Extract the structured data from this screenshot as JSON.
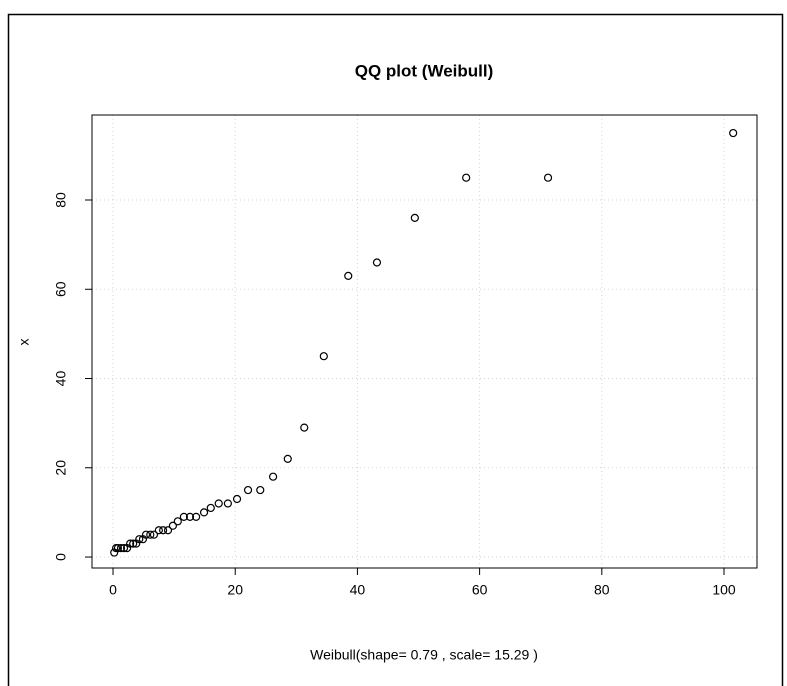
{
  "chart_data": {
    "type": "scatter",
    "title": "QQ plot (Weibull)",
    "xlabel": "Weibull(shape= 0.79 , scale= 15.29 )",
    "ylabel": "x",
    "x": [
      0.2,
      0.5,
      0.8,
      1.3,
      1.8,
      2.3,
      2.8,
      3.3,
      3.8,
      4.3,
      4.9,
      5.4,
      6.1,
      6.7,
      7.5,
      8.2,
      9.0,
      9.8,
      10.6,
      11.6,
      12.6,
      13.6,
      14.9,
      16.0,
      17.3,
      18.8,
      20.3,
      22.1,
      24.1,
      26.2,
      28.6,
      31.3,
      34.5,
      38.5,
      43.2,
      49.4,
      57.8,
      71.2,
      101.5
    ],
    "y": [
      1,
      2,
      2,
      2,
      2,
      2,
      3,
      3,
      3,
      4,
      4,
      5,
      5,
      5,
      6,
      6,
      6,
      7,
      8,
      9,
      9,
      9,
      10,
      11,
      12,
      12,
      13,
      15,
      15,
      18,
      22,
      29,
      45,
      63,
      66,
      76,
      85,
      85,
      95
    ],
    "color": "#000000",
    "xlim": [
      -3.44,
      105.4
    ],
    "ylim": [
      -2.46,
      99.05
    ],
    "xticks": [
      0,
      20,
      40,
      60,
      80,
      100
    ],
    "yticks": [
      0,
      20,
      40,
      60,
      80
    ],
    "grid": true
  }
}
